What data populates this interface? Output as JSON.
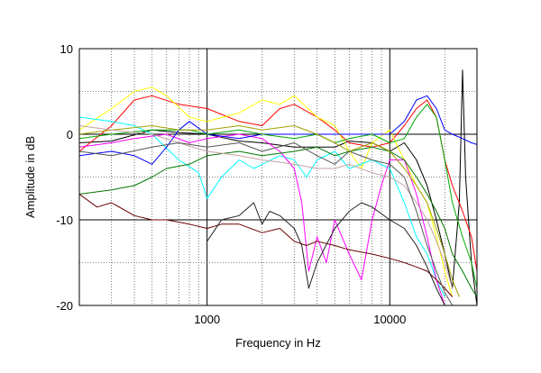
{
  "chart_data": {
    "type": "line",
    "title": "",
    "xlabel": "Frequency in Hz",
    "ylabel": "Amplitude in dB",
    "xscale": "log",
    "xlim": [
      200,
      30000
    ],
    "ylim": [
      -20,
      10
    ],
    "x_tick_labels": [
      {
        "value": 1000,
        "label": "1000"
      },
      {
        "value": 10000,
        "label": "10000"
      }
    ],
    "y_tick_labels": [
      {
        "value": 10,
        "label": "10"
      },
      {
        "value": 0,
        "label": "0"
      },
      {
        "value": -10,
        "label": "-10"
      },
      {
        "value": -20,
        "label": "-20"
      }
    ],
    "grid": true,
    "legend": "none",
    "series": [
      {
        "color": "#000000",
        "points": [
          [
            200,
            -1.0
          ],
          [
            300,
            -0.8
          ],
          [
            500,
            0.5
          ],
          [
            700,
            0.2
          ],
          [
            1000,
            0.0
          ],
          [
            1500,
            -0.8
          ],
          [
            2000,
            -1.0
          ],
          [
            3000,
            -1.5
          ],
          [
            4000,
            -1.5
          ],
          [
            5000,
            -1.5
          ],
          [
            6000,
            -0.8
          ],
          [
            8000,
            -1.0
          ],
          [
            10000,
            -2.0
          ],
          [
            12000,
            -1.0
          ],
          [
            14000,
            -3.0
          ],
          [
            16000,
            -6.0
          ],
          [
            18000,
            -10.0
          ],
          [
            20000,
            -14.0
          ],
          [
            22000,
            -18.0
          ],
          [
            24000,
            -8.0
          ],
          [
            25000,
            7.5
          ],
          [
            26000,
            -5.0
          ],
          [
            28000,
            -15.0
          ],
          [
            30000,
            -20.0
          ]
        ]
      },
      {
        "color": "#ff0000",
        "points": [
          [
            200,
            -2.0
          ],
          [
            300,
            1.0
          ],
          [
            400,
            4.0
          ],
          [
            500,
            4.5
          ],
          [
            700,
            3.5
          ],
          [
            1000,
            3.0
          ],
          [
            1500,
            1.5
          ],
          [
            2000,
            1.0
          ],
          [
            2500,
            3.0
          ],
          [
            3000,
            3.5
          ],
          [
            4000,
            2.0
          ],
          [
            5000,
            0.5
          ],
          [
            6000,
            -1.0
          ],
          [
            8000,
            -1.5
          ],
          [
            10000,
            -1.0
          ],
          [
            12000,
            1.0
          ],
          [
            14000,
            3.0
          ],
          [
            16000,
            4.0
          ],
          [
            18000,
            2.0
          ],
          [
            20000,
            -3.0
          ],
          [
            22000,
            -6.0
          ],
          [
            25000,
            -9.0
          ],
          [
            28000,
            -12.0
          ],
          [
            30000,
            -16.0
          ]
        ]
      },
      {
        "color": "#ffff00",
        "points": [
          [
            200,
            0.5
          ],
          [
            300,
            3.0
          ],
          [
            400,
            5.0
          ],
          [
            500,
            5.5
          ],
          [
            600,
            4.5
          ],
          [
            800,
            2.0
          ],
          [
            1000,
            1.5
          ],
          [
            1500,
            2.5
          ],
          [
            2000,
            4.0
          ],
          [
            2500,
            3.5
          ],
          [
            3000,
            4.5
          ],
          [
            4000,
            2.0
          ],
          [
            5000,
            1.0
          ],
          [
            6000,
            -2.0
          ],
          [
            7000,
            -4.0
          ],
          [
            8000,
            -1.0
          ],
          [
            10000,
            0.5
          ],
          [
            12000,
            -3.0
          ],
          [
            14000,
            -6.0
          ],
          [
            16000,
            -8.0
          ],
          [
            18000,
            -12.0
          ],
          [
            20000,
            -16.0
          ],
          [
            22000,
            -19.0
          ]
        ]
      },
      {
        "color": "#00ffff",
        "points": [
          [
            200,
            2.0
          ],
          [
            300,
            1.5
          ],
          [
            400,
            1.0
          ],
          [
            500,
            0.0
          ],
          [
            700,
            -3.0
          ],
          [
            900,
            -4.5
          ],
          [
            1000,
            -7.5
          ],
          [
            1200,
            -5.0
          ],
          [
            1500,
            -3.0
          ],
          [
            1800,
            -4.0
          ],
          [
            2000,
            -3.5
          ],
          [
            2500,
            -2.5
          ],
          [
            3000,
            -3.0
          ],
          [
            3500,
            -5.0
          ],
          [
            4000,
            -3.0
          ],
          [
            5000,
            -2.0
          ],
          [
            6000,
            -4.0
          ],
          [
            8000,
            -3.0
          ],
          [
            10000,
            -4.0
          ],
          [
            12000,
            -8.0
          ],
          [
            14000,
            -12.0
          ],
          [
            16000,
            -14.0
          ],
          [
            18000,
            -17.0
          ],
          [
            20000,
            -19.0
          ]
        ]
      },
      {
        "color": "#ff00ff",
        "points": [
          [
            200,
            -1.5
          ],
          [
            300,
            -1.0
          ],
          [
            400,
            -0.5
          ],
          [
            600,
            0.0
          ],
          [
            800,
            -1.0
          ],
          [
            1000,
            -0.5
          ],
          [
            1500,
            0.0
          ],
          [
            2000,
            -0.5
          ],
          [
            2500,
            -2.0
          ],
          [
            3000,
            -4.0
          ],
          [
            3300,
            -8.0
          ],
          [
            3600,
            -16.0
          ],
          [
            4000,
            -12.0
          ],
          [
            4500,
            -15.0
          ],
          [
            5000,
            -10.0
          ],
          [
            6000,
            -14.0
          ],
          [
            7000,
            -17.0
          ],
          [
            8000,
            -10.0
          ],
          [
            9000,
            -6.0
          ],
          [
            10000,
            -3.0
          ],
          [
            12000,
            -3.0
          ],
          [
            14000,
            -7.0
          ],
          [
            16000,
            -12.0
          ],
          [
            18000,
            -17.0
          ],
          [
            20000,
            -20.0
          ]
        ]
      },
      {
        "color": "#0000ff",
        "points": [
          [
            200,
            -2.5
          ],
          [
            300,
            -2.0
          ],
          [
            400,
            -2.5
          ],
          [
            500,
            -3.5
          ],
          [
            600,
            -1.5
          ],
          [
            700,
            0.5
          ],
          [
            800,
            1.5
          ],
          [
            1000,
            0.0
          ],
          [
            1500,
            -0.5
          ],
          [
            2000,
            0.0
          ],
          [
            3000,
            0.0
          ],
          [
            4000,
            0.0
          ],
          [
            6000,
            0.0
          ],
          [
            8000,
            0.0
          ],
          [
            10000,
            0.0
          ],
          [
            12000,
            1.5
          ],
          [
            14000,
            4.0
          ],
          [
            16000,
            4.5
          ],
          [
            18000,
            3.0
          ],
          [
            20000,
            0.5
          ],
          [
            22000,
            0.0
          ],
          [
            25000,
            -0.5
          ],
          [
            28000,
            -1.0
          ],
          [
            30000,
            -1.2
          ]
        ]
      },
      {
        "color": "#00aa00",
        "points": [
          [
            200,
            -0.5
          ],
          [
            300,
            0.0
          ],
          [
            500,
            0.5
          ],
          [
            800,
            0.5
          ],
          [
            1000,
            0.0
          ],
          [
            1500,
            0.5
          ],
          [
            2000,
            0.0
          ],
          [
            3000,
            -0.5
          ],
          [
            4000,
            0.0
          ],
          [
            5000,
            -1.0
          ],
          [
            6000,
            -0.5
          ],
          [
            8000,
            0.0
          ],
          [
            10000,
            -1.0
          ],
          [
            12000,
            -0.5
          ],
          [
            14000,
            2.0
          ],
          [
            16000,
            3.5
          ],
          [
            18000,
            2.0
          ],
          [
            20000,
            -3.0
          ],
          [
            22000,
            -8.0
          ],
          [
            25000,
            -12.0
          ],
          [
            28000,
            -15.0
          ],
          [
            30000,
            -18.0
          ]
        ]
      },
      {
        "color": "#007700",
        "points": [
          [
            200,
            -7.0
          ],
          [
            300,
            -6.5
          ],
          [
            400,
            -6.0
          ],
          [
            500,
            -5.0
          ],
          [
            600,
            -4.0
          ],
          [
            800,
            -3.5
          ],
          [
            1000,
            -2.5
          ],
          [
            1500,
            -2.0
          ],
          [
            2000,
            -2.5
          ],
          [
            3000,
            -2.0
          ],
          [
            4000,
            -1.5
          ],
          [
            5000,
            -2.5
          ],
          [
            6000,
            -2.0
          ],
          [
            8000,
            -1.5
          ],
          [
            10000,
            -2.0
          ],
          [
            12000,
            -3.0
          ],
          [
            14000,
            -5.0
          ],
          [
            16000,
            -7.0
          ],
          [
            18000,
            -9.0
          ],
          [
            20000,
            -11.0
          ],
          [
            22000,
            -14.0
          ],
          [
            25000,
            -16.0
          ],
          [
            28000,
            -18.0
          ],
          [
            30000,
            -19.0
          ]
        ]
      },
      {
        "color": "#a0a000",
        "points": [
          [
            200,
            0.0
          ],
          [
            300,
            0.5
          ],
          [
            500,
            1.0
          ],
          [
            700,
            0.5
          ],
          [
            1000,
            0.5
          ],
          [
            1500,
            1.0
          ],
          [
            2000,
            0.5
          ],
          [
            3000,
            1.0
          ],
          [
            4000,
            0.0
          ],
          [
            5000,
            -1.0
          ],
          [
            6000,
            -2.0
          ],
          [
            8000,
            -1.0
          ],
          [
            10000,
            -2.0
          ],
          [
            12000,
            -4.0
          ],
          [
            14000,
            -6.0
          ],
          [
            16000,
            -8.0
          ],
          [
            18000,
            -11.0
          ],
          [
            20000,
            -14.0
          ],
          [
            22000,
            -17.0
          ],
          [
            24000,
            -19.0
          ]
        ]
      },
      {
        "color": "#6a0000",
        "points": [
          [
            200,
            -7.0
          ],
          [
            250,
            -8.5
          ],
          [
            300,
            -8.0
          ],
          [
            400,
            -9.5
          ],
          [
            500,
            -10.0
          ],
          [
            600,
            -10.0
          ],
          [
            800,
            -10.5
          ],
          [
            1000,
            -11.0
          ],
          [
            1200,
            -10.5
          ],
          [
            1500,
            -10.5
          ],
          [
            2000,
            -11.5
          ],
          [
            2500,
            -11.0
          ],
          [
            3000,
            -12.5
          ],
          [
            3500,
            -13.0
          ],
          [
            4000,
            -12.5
          ],
          [
            5000,
            -13.0
          ],
          [
            6000,
            -13.5
          ],
          [
            8000,
            -14.0
          ],
          [
            10000,
            -14.5
          ],
          [
            12000,
            -15.0
          ],
          [
            14000,
            -15.5
          ],
          [
            16000,
            -16.0
          ],
          [
            18000,
            -17.0
          ],
          [
            20000,
            -18.0
          ],
          [
            22000,
            -19.0
          ]
        ]
      },
      {
        "color": "#222222",
        "points": [
          [
            1000,
            -12.5
          ],
          [
            1200,
            -10.0
          ],
          [
            1500,
            -9.5
          ],
          [
            1800,
            -8.0
          ],
          [
            2000,
            -10.5
          ],
          [
            2200,
            -9.0
          ],
          [
            2500,
            -9.5
          ],
          [
            3000,
            -11.0
          ],
          [
            3300,
            -13.0
          ],
          [
            3600,
            -18.0
          ],
          [
            4000,
            -15.0
          ],
          [
            5000,
            -11.0
          ],
          [
            6000,
            -9.0
          ],
          [
            7000,
            -8.0
          ],
          [
            8000,
            -8.5
          ],
          [
            10000,
            -10.0
          ],
          [
            12000,
            -11.0
          ],
          [
            14000,
            -13.0
          ],
          [
            16000,
            -15.5
          ],
          [
            18000,
            -18.0
          ],
          [
            20000,
            -20.0
          ]
        ]
      },
      {
        "color": "#c8a0a0",
        "points": [
          [
            200,
            1.0
          ],
          [
            300,
            0.5
          ],
          [
            500,
            0.0
          ],
          [
            700,
            -1.0
          ],
          [
            1000,
            -2.0
          ],
          [
            1500,
            -2.5
          ],
          [
            2000,
            -3.0
          ],
          [
            3000,
            -3.5
          ],
          [
            4000,
            -4.0
          ],
          [
            5000,
            -4.0
          ],
          [
            6000,
            -3.5
          ],
          [
            8000,
            -4.5
          ],
          [
            10000,
            -5.0
          ],
          [
            12000,
            -6.0
          ],
          [
            14000,
            -8.0
          ],
          [
            16000,
            -10.0
          ],
          [
            18000,
            -12.5
          ],
          [
            20000,
            -15.0
          ],
          [
            22000,
            -18.0
          ]
        ]
      },
      {
        "color": "#555555",
        "points": [
          [
            200,
            -2.0
          ],
          [
            300,
            -2.5
          ],
          [
            500,
            -1.5
          ],
          [
            700,
            -1.0
          ],
          [
            1000,
            -1.5
          ],
          [
            1500,
            -1.0
          ],
          [
            2000,
            -2.0
          ],
          [
            3000,
            -1.0
          ],
          [
            4000,
            -2.5
          ],
          [
            5000,
            -3.5
          ],
          [
            6000,
            -2.0
          ],
          [
            8000,
            -3.0
          ],
          [
            10000,
            -3.5
          ],
          [
            12000,
            -5.0
          ],
          [
            14000,
            -9.0
          ],
          [
            16000,
            -13.0
          ],
          [
            18000,
            -16.0
          ],
          [
            20000,
            -18.5
          ],
          [
            22000,
            -20.0
          ]
        ]
      }
    ]
  }
}
